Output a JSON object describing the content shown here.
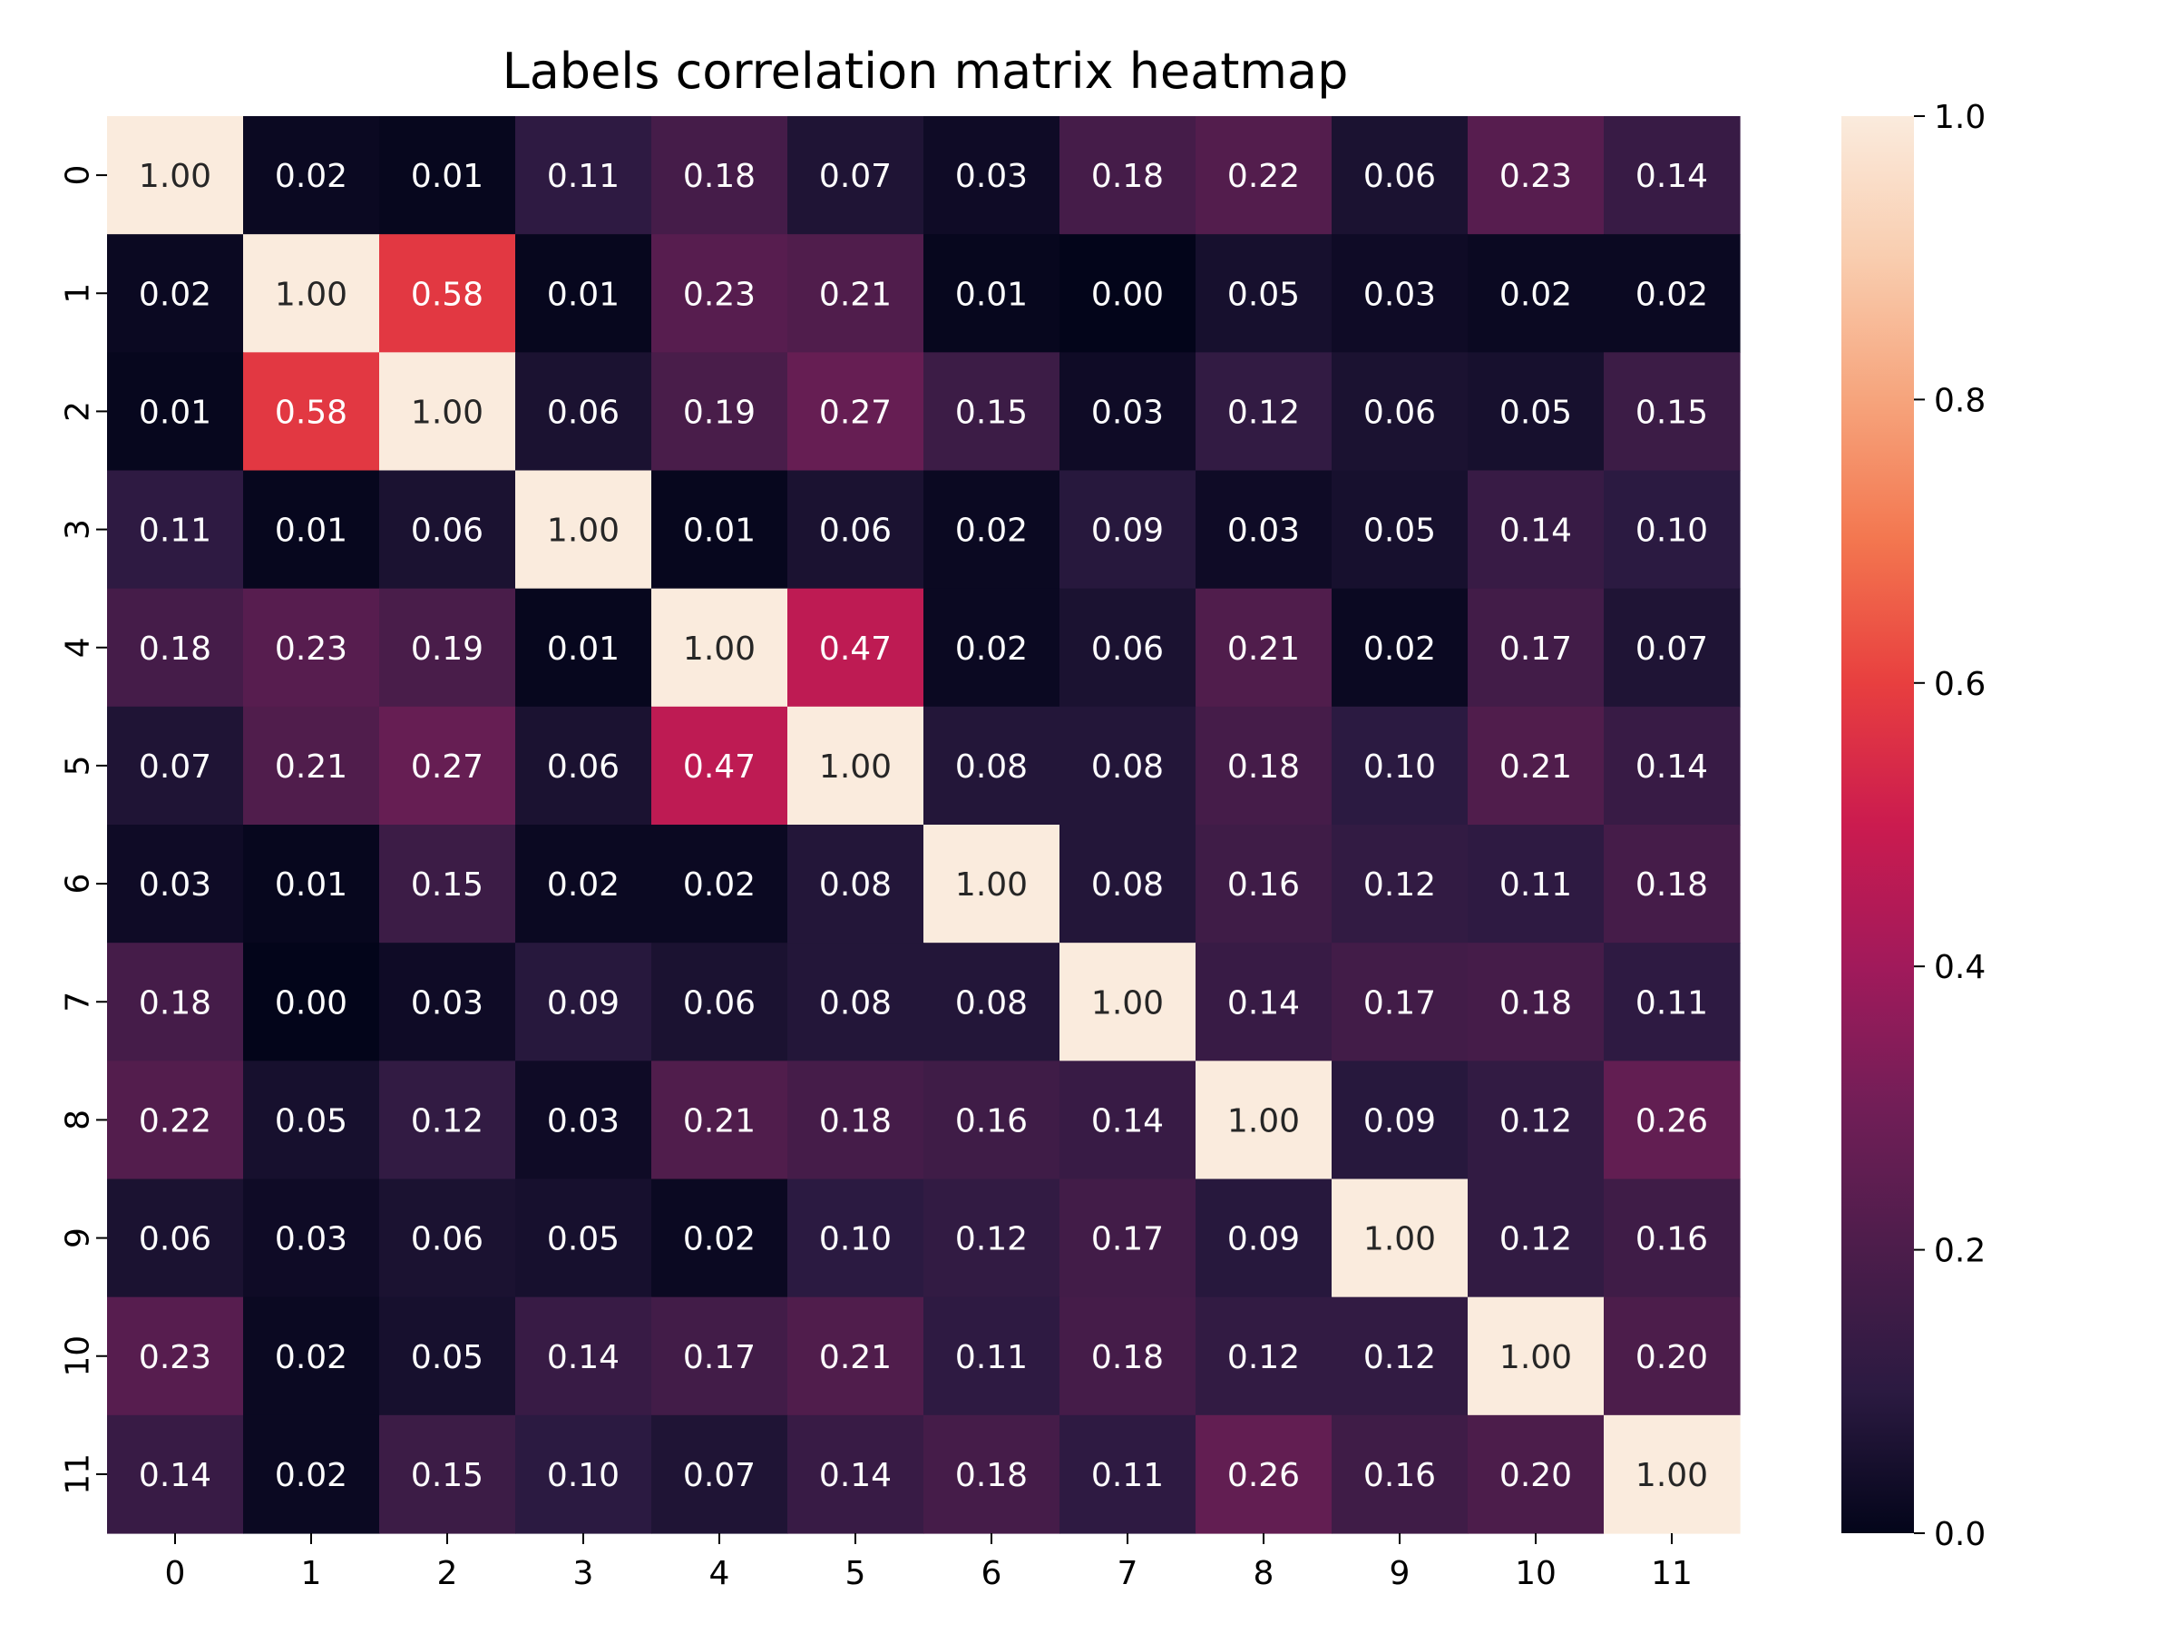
{
  "chart_data": {
    "type": "heatmap",
    "title": "Labels correlation matrix heatmap",
    "xlabel": "",
    "ylabel": "",
    "x_labels": [
      "0",
      "1",
      "2",
      "3",
      "4",
      "5",
      "6",
      "7",
      "8",
      "9",
      "10",
      "11"
    ],
    "y_labels": [
      "0",
      "1",
      "2",
      "3",
      "4",
      "5",
      "6",
      "7",
      "8",
      "9",
      "10",
      "11"
    ],
    "values": [
      [
        1.0,
        0.02,
        0.01,
        0.11,
        0.18,
        0.07,
        0.03,
        0.18,
        0.22,
        0.06,
        0.23,
        0.14
      ],
      [
        0.02,
        1.0,
        0.58,
        0.01,
        0.23,
        0.21,
        0.01,
        0.0,
        0.05,
        0.03,
        0.02,
        0.02
      ],
      [
        0.01,
        0.58,
        1.0,
        0.06,
        0.19,
        0.27,
        0.15,
        0.03,
        0.12,
        0.06,
        0.05,
        0.15
      ],
      [
        0.11,
        0.01,
        0.06,
        1.0,
        0.01,
        0.06,
        0.02,
        0.09,
        0.03,
        0.05,
        0.14,
        0.1
      ],
      [
        0.18,
        0.23,
        0.19,
        0.01,
        1.0,
        0.47,
        0.02,
        0.06,
        0.21,
        0.02,
        0.17,
        0.07
      ],
      [
        0.07,
        0.21,
        0.27,
        0.06,
        0.47,
        1.0,
        0.08,
        0.08,
        0.18,
        0.1,
        0.21,
        0.14
      ],
      [
        0.03,
        0.01,
        0.15,
        0.02,
        0.02,
        0.08,
        1.0,
        0.08,
        0.16,
        0.12,
        0.11,
        0.18
      ],
      [
        0.18,
        0.0,
        0.03,
        0.09,
        0.06,
        0.08,
        0.08,
        1.0,
        0.14,
        0.17,
        0.18,
        0.11
      ],
      [
        0.22,
        0.05,
        0.12,
        0.03,
        0.21,
        0.18,
        0.16,
        0.14,
        1.0,
        0.09,
        0.12,
        0.26
      ],
      [
        0.06,
        0.03,
        0.06,
        0.05,
        0.02,
        0.1,
        0.12,
        0.17,
        0.09,
        1.0,
        0.12,
        0.16
      ],
      [
        0.23,
        0.02,
        0.05,
        0.14,
        0.17,
        0.21,
        0.11,
        0.18,
        0.12,
        0.12,
        1.0,
        0.2
      ],
      [
        0.14,
        0.02,
        0.15,
        0.1,
        0.07,
        0.14,
        0.18,
        0.11,
        0.26,
        0.16,
        0.2,
        1.0
      ]
    ],
    "value_format": "0.00",
    "colorbar": {
      "range": [
        0.0,
        1.0
      ],
      "ticks": [
        0.0,
        0.2,
        0.4,
        0.6,
        0.8,
        1.0
      ],
      "tick_labels": [
        "0.0",
        "0.2",
        "0.4",
        "0.6",
        "0.8",
        "1.0"
      ],
      "colormap_stops": [
        "#03051a",
        "#2b1a41",
        "#4c1d4b",
        "#711e57",
        "#a11a5b",
        "#cb1b4f",
        "#e83f3f",
        "#f3764f",
        "#f6a47c",
        "#f9cdaf",
        "#faebdd"
      ]
    },
    "grid": false,
    "legend": "colorbar right"
  }
}
